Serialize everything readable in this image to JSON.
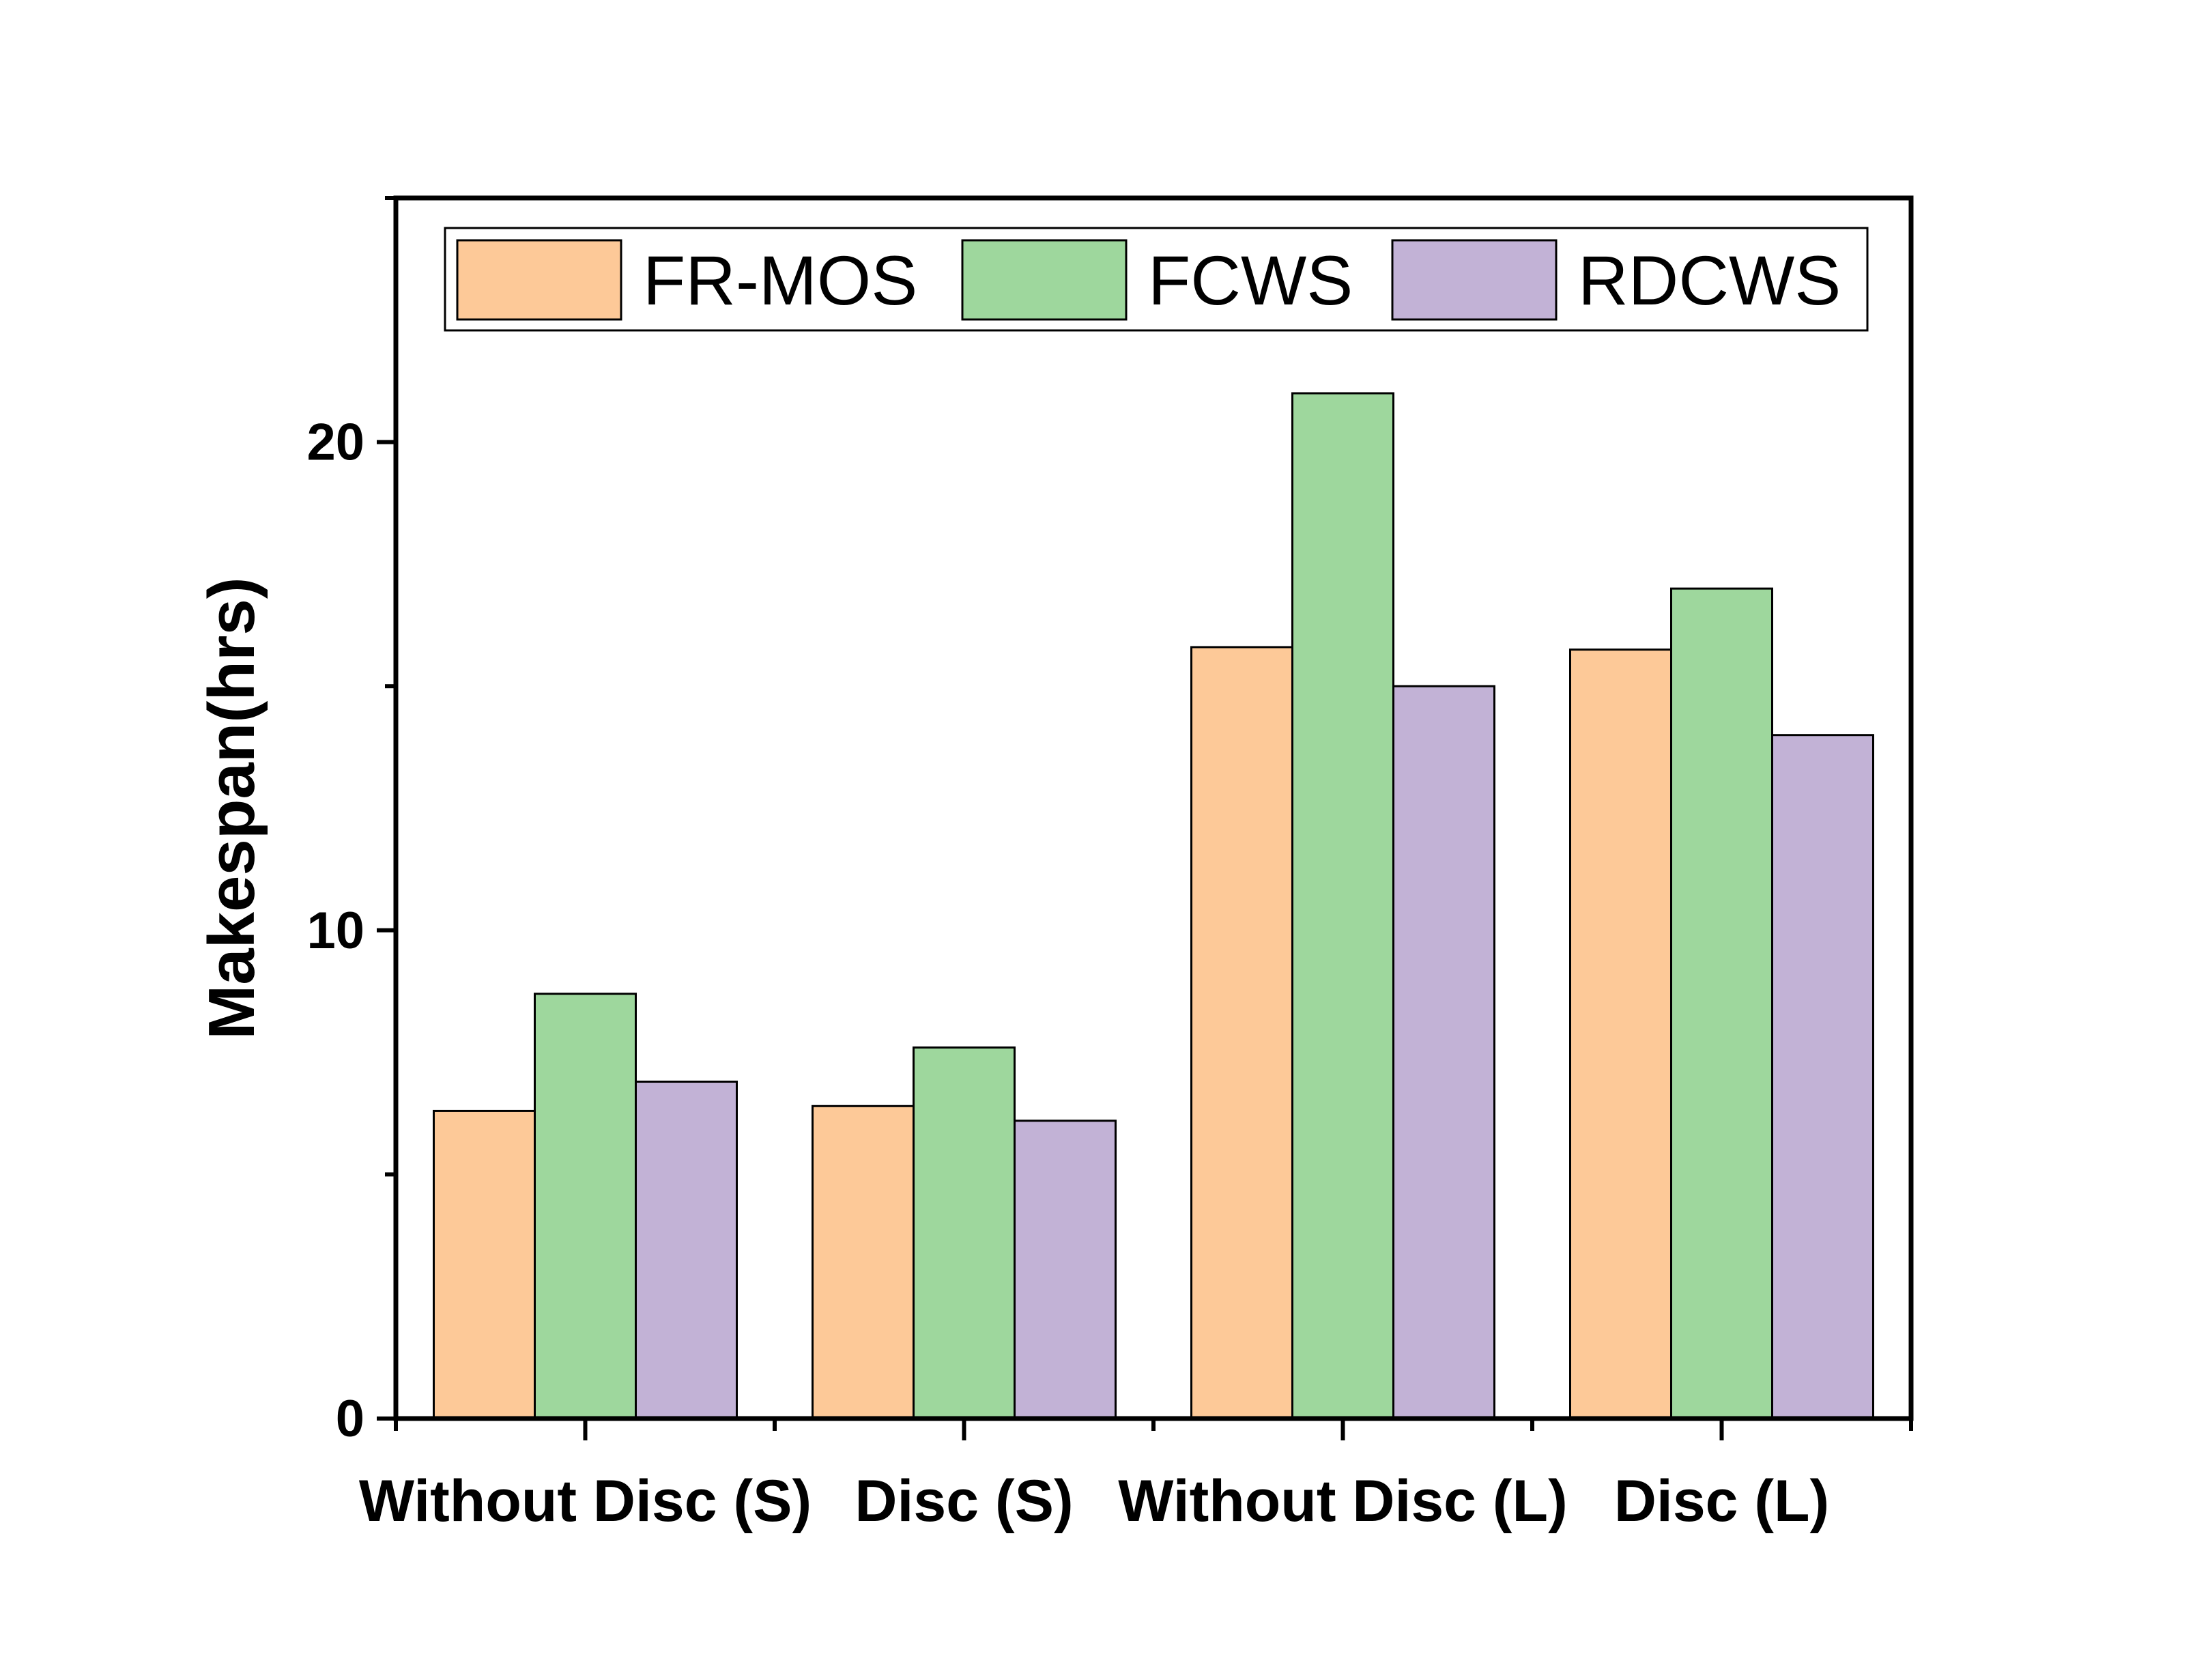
{
  "chart_data": {
    "type": "bar",
    "categories": [
      "Without Disc (S)",
      "Disc (S)",
      "Without Disc (L)",
      "Disc (L)"
    ],
    "series": [
      {
        "name": "FR-MOS",
        "color": "#FDC998",
        "values": [
          6.3,
          6.4,
          15.8,
          15.75
        ]
      },
      {
        "name": "FCWS",
        "color": "#9ED79D",
        "values": [
          8.7,
          7.6,
          21.0,
          17.0
        ]
      },
      {
        "name": "RDCWS",
        "color": "#C2B2D6",
        "values": [
          6.9,
          6.1,
          15.0,
          14.0
        ]
      }
    ],
    "title": "",
    "xlabel": "",
    "ylabel": "Makespan(hrs)",
    "ylim": [
      0,
      25
    ],
    "yticks": [
      0,
      10,
      20
    ],
    "ytick_labels": [
      "0",
      "10",
      "20"
    ],
    "grid": false,
    "legend_position": "top"
  }
}
